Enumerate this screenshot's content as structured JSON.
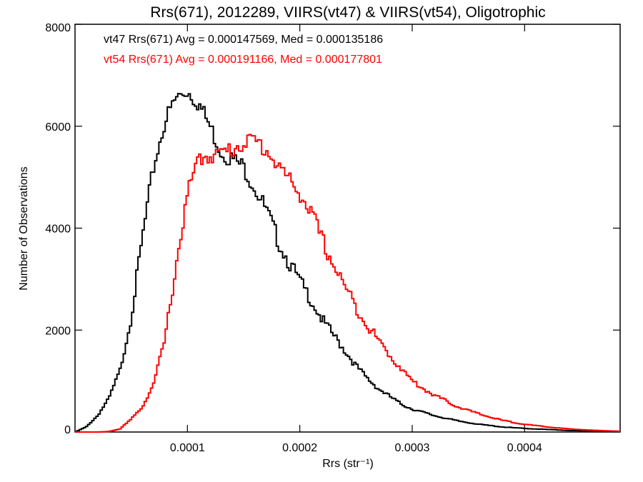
{
  "chart_data": {
    "type": "line",
    "title": "Rrs(671), 2012289, VIIRS(vt47) & VIIRS(vt54), Oligotrophic",
    "xlabel": "Rrs (str⁻¹)",
    "ylabel": "Number of Observations",
    "xlim": [
      0,
      0.000485
    ],
    "ylim": [
      0,
      8000
    ],
    "x_ticks": [
      0.0001,
      0.0002,
      0.0003,
      0.0004
    ],
    "x_tick_labels": [
      "0.0001",
      "0.0002",
      "0.0003",
      "0.0004"
    ],
    "y_ticks": [
      0,
      2000,
      4000,
      6000,
      8000
    ],
    "y_tick_labels": [
      "0",
      "2000",
      "4000",
      "6000",
      "8000"
    ],
    "grid": false,
    "annotations": [
      {
        "text": "vt47 Rrs(671) Avg = 0.000147569, Med = 0.000135186",
        "color": "#000000"
      },
      {
        "text": "vt54 Rrs(671) Avg = 0.000191166, Med = 0.000177801",
        "color": "#ff0000"
      }
    ],
    "series": [
      {
        "color": "#000000",
        "x": [
          0,
          1e-05,
          2e-05,
          3e-05,
          4e-05,
          5e-05,
          6e-05,
          7e-05,
          8e-05,
          9e-05,
          0.0001,
          0.00011,
          0.00012,
          0.00013,
          0.00014,
          0.00015,
          0.00016,
          0.00017,
          0.00018,
          0.00019,
          0.0002,
          0.00021,
          0.00022,
          0.00023,
          0.00024,
          0.00025,
          0.00026,
          0.00027,
          0.00028,
          0.00029,
          0.0003,
          0.00032,
          0.00034,
          0.00036,
          0.00038,
          0.0004,
          0.00042,
          0.00044,
          0.00046,
          0.000485
        ],
        "values": [
          0,
          100,
          320,
          650,
          1200,
          2250,
          3800,
          5200,
          6100,
          6550,
          6700,
          6450,
          6000,
          5500,
          5350,
          5200,
          4800,
          4350,
          3800,
          3350,
          2950,
          2600,
          2200,
          1900,
          1600,
          1300,
          1050,
          850,
          700,
          550,
          450,
          320,
          220,
          150,
          100,
          70,
          50,
          30,
          20,
          10
        ]
      },
      {
        "color": "#ff0000",
        "x": [
          0,
          2e-05,
          3e-05,
          4e-05,
          5e-05,
          6e-05,
          7e-05,
          8e-05,
          9e-05,
          0.0001,
          0.00011,
          0.00012,
          0.00013,
          0.00014,
          0.00015,
          0.00016,
          0.00017,
          0.00018,
          0.00019,
          0.0002,
          0.00021,
          0.00022,
          0.00023,
          0.00024,
          0.00025,
          0.00026,
          0.00027,
          0.00028,
          0.00029,
          0.0003,
          0.00031,
          0.00032,
          0.00034,
          0.00036,
          0.00038,
          0.0004,
          0.00042,
          0.00044,
          0.00046,
          0.000485
        ],
        "values": [
          0,
          0,
          10,
          60,
          250,
          500,
          950,
          1800,
          3300,
          4650,
          5350,
          5450,
          5450,
          5550,
          5700,
          5700,
          5550,
          5250,
          4950,
          4700,
          4300,
          3750,
          3300,
          2850,
          2450,
          2100,
          1800,
          1500,
          1250,
          1000,
          850,
          720,
          500,
          350,
          230,
          150,
          100,
          60,
          35,
          15
        ]
      }
    ]
  }
}
